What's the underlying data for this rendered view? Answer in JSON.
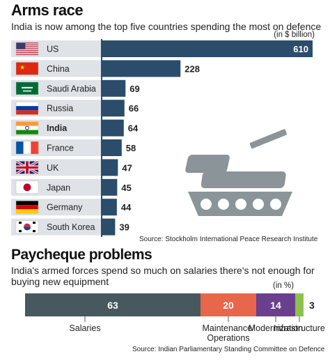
{
  "chart_data": [
    {
      "type": "bar",
      "orientation": "horizontal",
      "title": "Arms race",
      "subtitle": "India is now among the top five countries spending the most on defence",
      "unit": "(in $ billion)",
      "categories": [
        "US",
        "China",
        "Saudi Arabia",
        "Russia",
        "India",
        "France",
        "UK",
        "Japan",
        "Germany",
        "South Korea"
      ],
      "values": [
        610,
        228,
        69,
        66,
        64,
        58,
        47,
        45,
        44,
        39
      ],
      "highlight": "India",
      "bar_color": "#2b4c6b",
      "source": "Source: Stockholm International Peace Research Institute",
      "icons": [
        "us-flag-icon",
        "china-flag-icon",
        "saudi-flag-icon",
        "russia-flag-icon",
        "india-flag-icon",
        "france-flag-icon",
        "uk-flag-icon",
        "japan-flag-icon",
        "germany-flag-icon",
        "south-korea-flag-icon",
        "tank-icon"
      ]
    },
    {
      "type": "bar",
      "orientation": "horizontal-stacked",
      "title": "Paycheque problems",
      "subtitle": "India's armed forces spend so much on salaries there's not enough for buying new equipment",
      "unit": "(in %)",
      "series": [
        {
          "name": "Salaries",
          "value": 63,
          "color": "#47585e"
        },
        {
          "name": "Maintenance/ Operations",
          "value": 20,
          "color": "#e8674a"
        },
        {
          "name": "Modernization",
          "value": 14,
          "color": "#6a3f8e"
        },
        {
          "name": "Infrastructure",
          "value": 3,
          "color": "#8cc24b"
        }
      ],
      "source": "Source: Indian Parliamentary Standing Committee on Defence"
    }
  ]
}
